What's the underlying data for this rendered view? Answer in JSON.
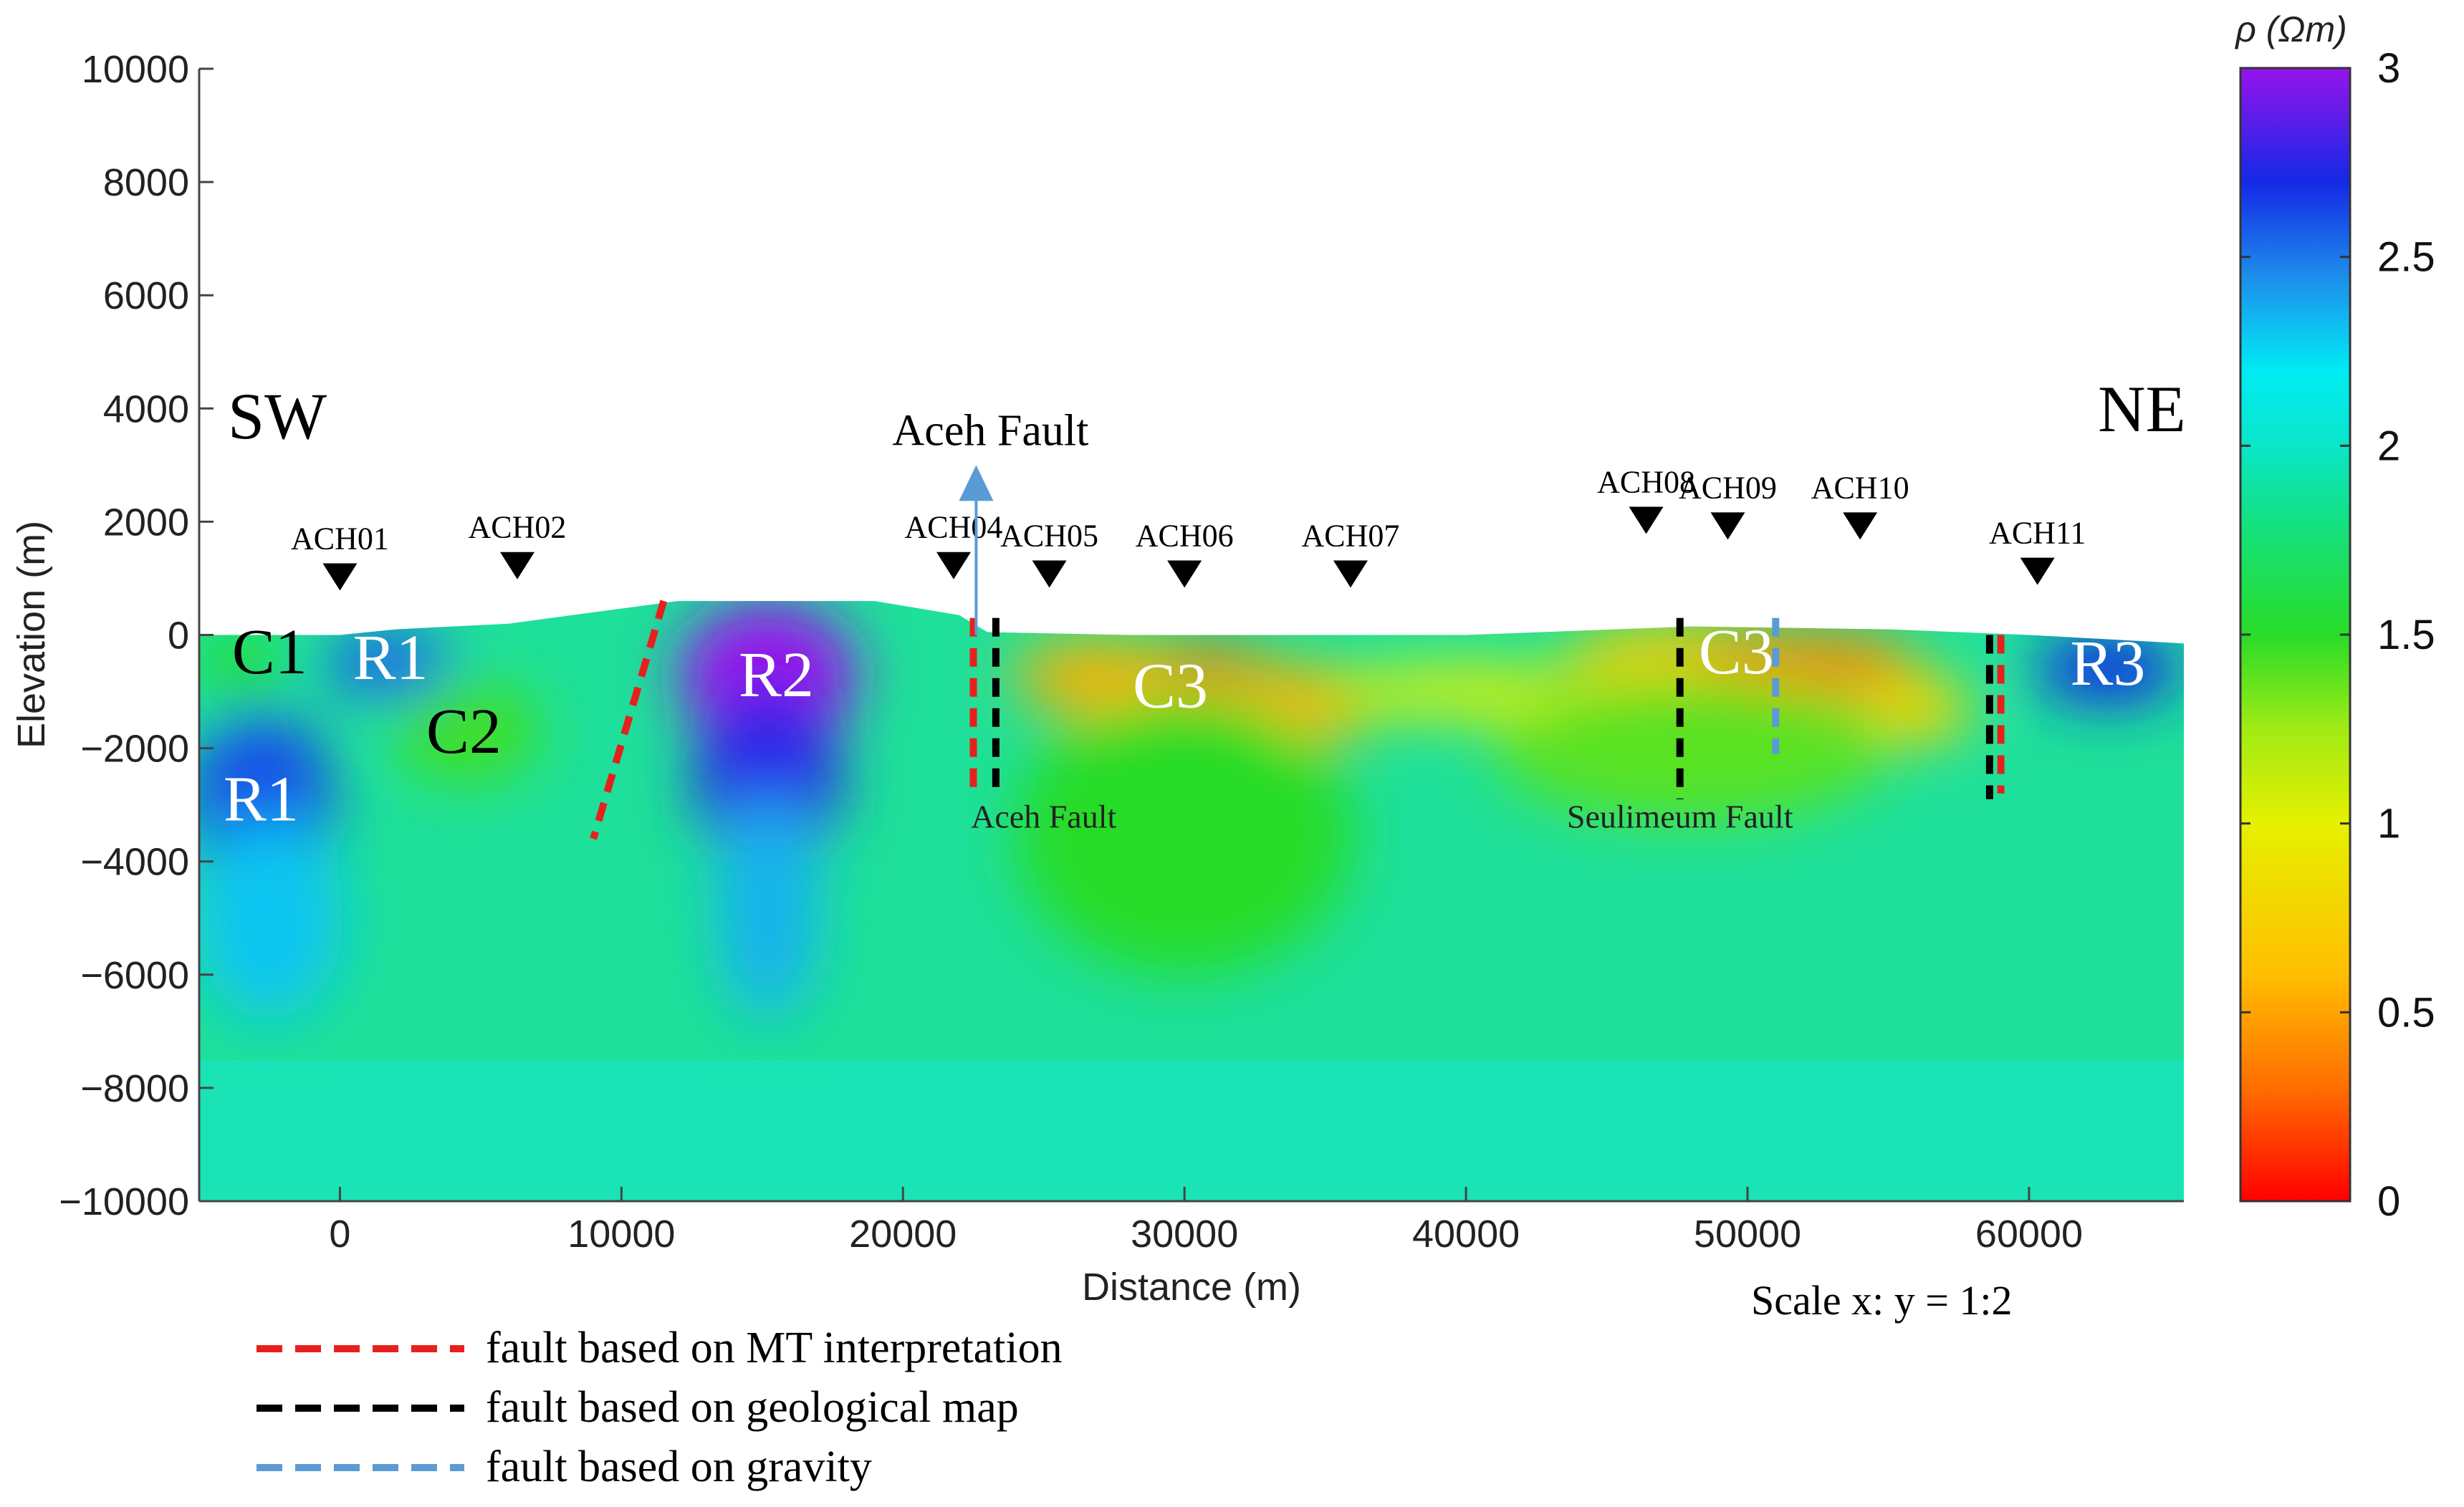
{
  "chart_data": {
    "type": "heatmap",
    "xlabel": "Distance (m)",
    "ylabel": "Elevation (m)",
    "colorbar_label": "ρ (Ωm)",
    "scale_note": "Scale x: y = 1:2",
    "xlim": [
      -5000,
      65500
    ],
    "ylim": [
      -10000,
      10000
    ],
    "x_ticks": [
      0,
      10000,
      20000,
      30000,
      40000,
      50000,
      60000
    ],
    "x_tick_labels": [
      "0",
      "10000",
      "20000",
      "30000",
      "40000",
      "50000",
      "60000"
    ],
    "y_ticks": [
      10000,
      8000,
      6000,
      4000,
      2000,
      0,
      -2000,
      -4000,
      -6000,
      -8000,
      -10000
    ],
    "y_tick_labels": [
      "10000",
      "8000",
      "6000",
      "4000",
      "2000",
      "0",
      "−2000",
      "−4000",
      "−6000",
      "−8000",
      "−10000"
    ],
    "colorbar_range": [
      0,
      3
    ],
    "colorbar_ticks": [
      3,
      2.5,
      2,
      1.5,
      1,
      0.5,
      0
    ],
    "colorbar_tick_labels": [
      "3",
      "2.5",
      "2",
      "1.5",
      "1",
      "0.5",
      "0"
    ],
    "direction_labels": {
      "left": "SW",
      "right": "NE"
    },
    "stations": [
      {
        "name": "ACH01",
        "x": 0,
        "elev": 0
      },
      {
        "name": "ACH02",
        "x": 6300,
        "elev": 200
      },
      {
        "name": "ACH04",
        "x": 21800,
        "elev": 200
      },
      {
        "name": "ACH05",
        "x": 25200,
        "elev": 50
      },
      {
        "name": "ACH06",
        "x": 30000,
        "elev": 50
      },
      {
        "name": "ACH07",
        "x": 35900,
        "elev": 50
      },
      {
        "name": "ACH08",
        "x": 46400,
        "elev": 1000
      },
      {
        "name": "ACH09",
        "x": 49300,
        "elev": 900
      },
      {
        "name": "ACH10",
        "x": 54000,
        "elev": 900
      },
      {
        "name": "ACH11",
        "x": 60300,
        "elev": 100
      }
    ],
    "surface": [
      [
        -5000,
        0
      ],
      [
        0,
        0
      ],
      [
        2000,
        100
      ],
      [
        6000,
        200
      ],
      [
        9000,
        400
      ],
      [
        12000,
        600
      ],
      [
        15000,
        600
      ],
      [
        19000,
        600
      ],
      [
        22000,
        350
      ],
      [
        23000,
        50
      ],
      [
        28000,
        0
      ],
      [
        40000,
        0
      ],
      [
        48000,
        150
      ],
      [
        55000,
        100
      ],
      [
        60000,
        0
      ],
      [
        65500,
        -150
      ]
    ],
    "zones": [
      {
        "label": "C1",
        "x": -2500,
        "y": -300,
        "color": "#000000"
      },
      {
        "label": "R1",
        "x": 1800,
        "y": -400,
        "color": "#ffffff"
      },
      {
        "label": "C2",
        "x": 4400,
        "y": -1700,
        "color": "#000000"
      },
      {
        "label": "R1",
        "x": -2800,
        "y": -2900,
        "color": "#ffffff"
      },
      {
        "label": "R2",
        "x": 15500,
        "y": -700,
        "color": "#ffffff"
      },
      {
        "label": "C3",
        "x": 29500,
        "y": -900,
        "color": "#ffffff"
      },
      {
        "label": "C3",
        "x": 49600,
        "y": -300,
        "color": "#ffffff"
      },
      {
        "label": "R3",
        "x": 62800,
        "y": -500,
        "color": "#ffffff"
      }
    ],
    "anomalies": [
      {
        "x": 15200,
        "y": -700,
        "value": 3.0,
        "rx": 3200,
        "ry": 1300
      },
      {
        "x": 15200,
        "y": -2500,
        "value": 2.75,
        "rx": 2600,
        "ry": 1600
      },
      {
        "x": 15200,
        "y": -4800,
        "value": 2.35,
        "rx": 1800,
        "ry": 2000
      },
      {
        "x": -2800,
        "y": -3000,
        "value": 2.6,
        "rx": 2600,
        "ry": 1700
      },
      {
        "x": -2500,
        "y": -5000,
        "value": 2.3,
        "rx": 2600,
        "ry": 1800
      },
      {
        "x": 1700,
        "y": -500,
        "value": 2.55,
        "rx": 2300,
        "ry": 600
      },
      {
        "x": 62800,
        "y": -600,
        "value": 2.7,
        "rx": 2600,
        "ry": 600
      },
      {
        "x": -3500,
        "y": -600,
        "value": 1.55,
        "rx": 1500,
        "ry": 700
      },
      {
        "x": 4500,
        "y": -1700,
        "value": 1.45,
        "rx": 2600,
        "ry": 900
      },
      {
        "x": 29500,
        "y": -900,
        "value": 0.2,
        "rx": 4500,
        "ry": 700
      },
      {
        "x": 27000,
        "y": -700,
        "value": 0.55,
        "rx": 3200,
        "ry": 600
      },
      {
        "x": 33500,
        "y": -1200,
        "value": 0.55,
        "rx": 3500,
        "ry": 650
      },
      {
        "x": 40000,
        "y": -1000,
        "value": 1.0,
        "rx": 5000,
        "ry": 450
      },
      {
        "x": 48000,
        "y": -400,
        "value": 0.7,
        "rx": 4500,
        "ry": 600
      },
      {
        "x": 52000,
        "y": -500,
        "value": 0.4,
        "rx": 4000,
        "ry": 550
      },
      {
        "x": 56000,
        "y": -1300,
        "value": 0.8,
        "rx": 2000,
        "ry": 600
      },
      {
        "x": 30000,
        "y": -3500,
        "value": 1.5,
        "rx": 6000,
        "ry": 2500
      },
      {
        "x": 48000,
        "y": -2000,
        "value": 1.4,
        "rx": 7000,
        "ry": 1300
      }
    ],
    "faults": [
      {
        "type": "mt",
        "points": [
          [
            11500,
            600
          ],
          [
            9000,
            -3600
          ]
        ]
      },
      {
        "type": "mt",
        "points": [
          [
            22500,
            300
          ],
          [
            22500,
            -2700
          ]
        ]
      },
      {
        "type": "geo",
        "points": [
          [
            23300,
            300
          ],
          [
            23300,
            -2800
          ]
        ]
      },
      {
        "type": "geo",
        "points": [
          [
            47600,
            300
          ],
          [
            47600,
            -2900
          ]
        ]
      },
      {
        "type": "gravity",
        "points": [
          [
            51000,
            300
          ],
          [
            51000,
            -2100
          ]
        ]
      },
      {
        "type": "geo",
        "points": [
          [
            58600,
            0
          ],
          [
            58600,
            -2900
          ]
        ]
      },
      {
        "type": "mt",
        "points": [
          [
            59000,
            0
          ],
          [
            59000,
            -2800
          ]
        ]
      }
    ],
    "fault_labels": [
      {
        "text": "Aceh Fault",
        "x": 25000,
        "y": -3400
      },
      {
        "text": "Seulimeum Fault",
        "x": 47600,
        "y": -3400
      }
    ],
    "aceh_arrow": {
      "label": "Aceh Fault",
      "x": 22600,
      "from": 0,
      "to": 3000
    },
    "legend": [
      {
        "type": "mt",
        "label": "fault based on MT interpretation",
        "color": "#e8201c"
      },
      {
        "type": "geo",
        "label": "fault based on geological map",
        "color": "#000000"
      },
      {
        "type": "gravity",
        "label": "fault based on gravity",
        "color": "#5b9bd5"
      }
    ]
  }
}
